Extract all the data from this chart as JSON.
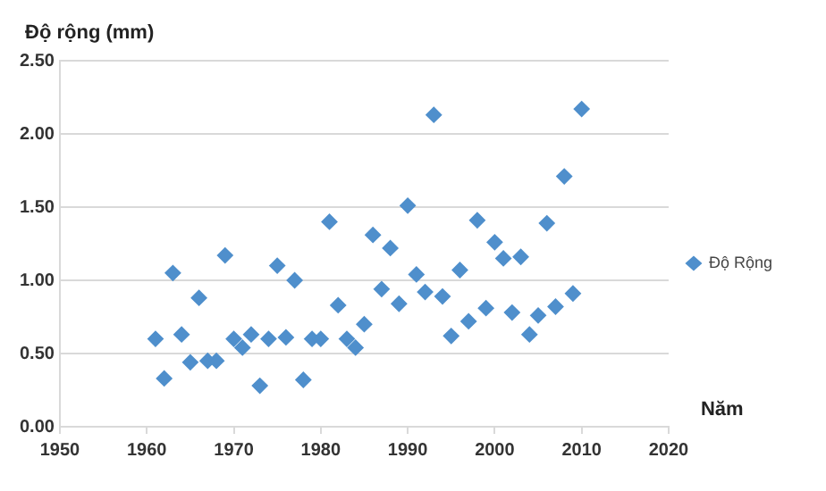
{
  "chart_data": {
    "type": "scatter",
    "ylabel": "Độ rộng (mm)",
    "xlabel": "Năm",
    "xlim": [
      1950,
      2020
    ],
    "xticks": [
      1950,
      1960,
      1970,
      1980,
      1990,
      2000,
      2010,
      2020
    ],
    "ylim": [
      0,
      2.5
    ],
    "yticks": [
      {
        "value": 0,
        "label": "0.00"
      },
      {
        "value": 0.5,
        "label": "0.50"
      },
      {
        "value": 1,
        "label": "1.00"
      },
      {
        "value": 1.5,
        "label": "1.50"
      },
      {
        "value": 2,
        "label": "2.00"
      },
      {
        "value": 2.5,
        "label": "2.50"
      }
    ],
    "grid": "y",
    "legend": "right",
    "marker": "diamond",
    "x": [
      1961,
      1962,
      1963,
      1964,
      1965,
      1966,
      1967,
      1968,
      1969,
      1970,
      1971,
      1972,
      1973,
      1974,
      1975,
      1976,
      1977,
      1978,
      1979,
      1980,
      1981,
      1982,
      1983,
      1984,
      1985,
      1986,
      1987,
      1988,
      1989,
      1990,
      1991,
      1992,
      1993,
      1994,
      1995,
      1996,
      1997,
      1998,
      1999,
      2000,
      2001,
      2002,
      2003,
      2004,
      2005,
      2006,
      2007,
      2008,
      2009,
      2010
    ],
    "series": [
      {
        "name": "Độ Rộng",
        "color": "#4f8fcc",
        "values": [
          0.6,
          0.33,
          1.05,
          0.63,
          0.44,
          0.88,
          0.45,
          0.45,
          1.17,
          0.6,
          0.54,
          0.63,
          0.28,
          0.6,
          1.1,
          0.61,
          1.0,
          0.32,
          0.6,
          0.6,
          1.4,
          0.83,
          0.6,
          0.54,
          0.7,
          1.31,
          0.94,
          1.22,
          0.84,
          1.51,
          1.04,
          0.92,
          2.13,
          0.89,
          0.62,
          1.07,
          0.72,
          1.41,
          0.81,
          1.26,
          1.15,
          0.78,
          1.16,
          0.63,
          0.76,
          1.39,
          0.82,
          1.71,
          0.91,
          2.17
        ]
      }
    ]
  }
}
